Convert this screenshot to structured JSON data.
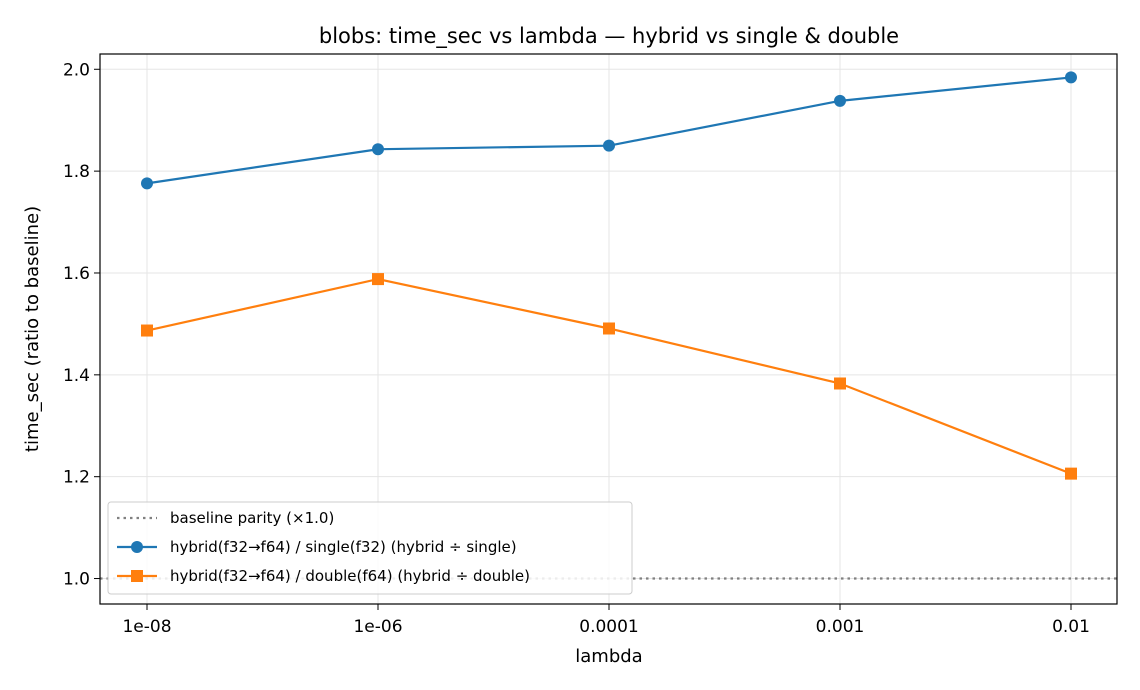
{
  "chart_data": {
    "type": "line",
    "title": "blobs: time_sec vs lambda — hybrid vs single & double",
    "xlabel": "lambda",
    "ylabel": "time_sec (ratio to baseline)",
    "categories": [
      "1e-08",
      "1e-06",
      "0.0001",
      "0.001",
      "0.01"
    ],
    "ylim": [
      0.95,
      2.03
    ],
    "yticks": [
      "1.0",
      "1.2",
      "1.4",
      "1.6",
      "1.8",
      "2.0"
    ],
    "grid": true,
    "legend_position": "lower-left",
    "baseline": {
      "name": "baseline parity (×1.0)",
      "value": 1.0,
      "color": "#808080"
    },
    "series": [
      {
        "name": "hybrid(f32→f64) / single(f32)  (hybrid ÷ single)",
        "values": [
          1.776,
          1.843,
          1.85,
          1.938,
          1.984
        ],
        "color": "#1f77b4",
        "marker": "circle"
      },
      {
        "name": "hybrid(f32→f64) / double(f64)  (hybrid ÷ double)",
        "values": [
          1.487,
          1.588,
          1.491,
          1.383,
          1.206
        ],
        "color": "#ff7f0e",
        "marker": "square"
      }
    ]
  }
}
